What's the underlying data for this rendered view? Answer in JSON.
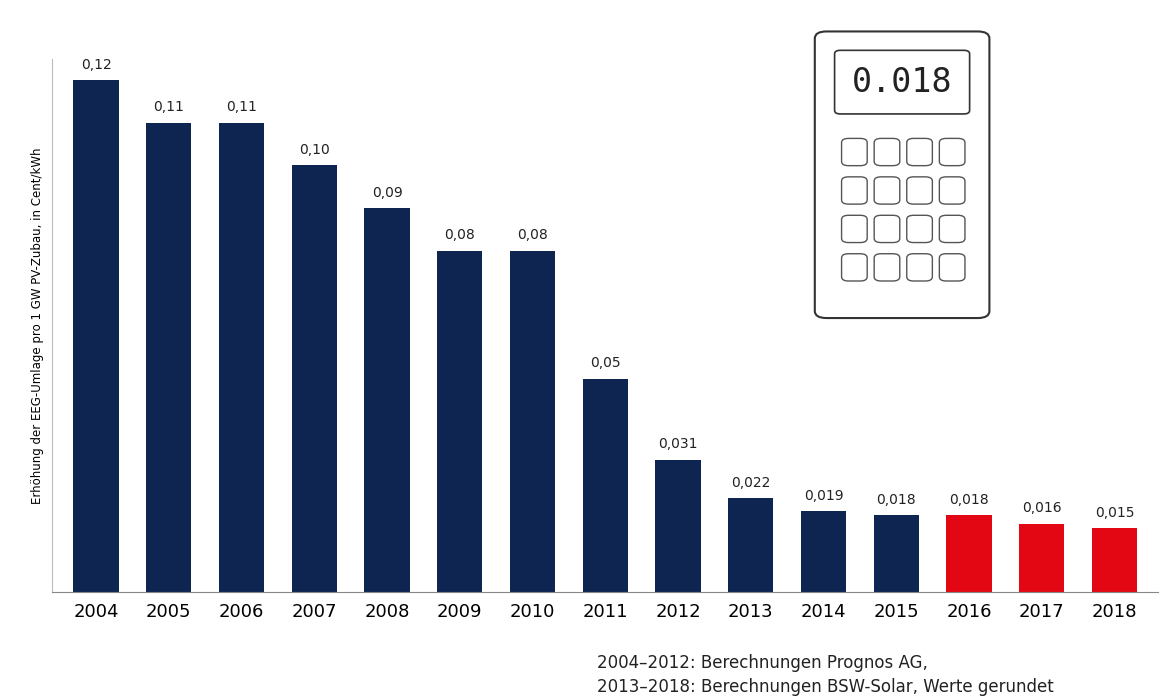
{
  "chart_data": {
    "type": "bar",
    "y_label": "Erhöhung der EEG-Umlage pro 1 GW PV-Zubau, in Cent/kWh",
    "categories": [
      "2004",
      "2005",
      "2006",
      "2007",
      "2008",
      "2009",
      "2010",
      "2011",
      "2012",
      "2013",
      "2014",
      "2015",
      "2016",
      "2017",
      "2018"
    ],
    "values": [
      0.12,
      0.11,
      0.11,
      0.1,
      0.09,
      0.08,
      0.08,
      0.05,
      0.031,
      0.022,
      0.019,
      0.018,
      0.018,
      0.016,
      0.015
    ],
    "value_labels": [
      "0,12",
      "0,11",
      "0,11",
      "0,10",
      "0,09",
      "0,08",
      "0,08",
      "0,05",
      "0,031",
      "0,022",
      "0,019",
      "0,018",
      "0,018",
      "0,016",
      "0,015"
    ],
    "colors": [
      "#0d2550",
      "#0d2550",
      "#0d2550",
      "#0d2550",
      "#0d2550",
      "#0d2550",
      "#0d2550",
      "#0d2550",
      "#0d2550",
      "#0d2550",
      "#0d2550",
      "#0d2550",
      "#e30613",
      "#e30613",
      "#e30613"
    ],
    "ylim": [
      0,
      0.125
    ],
    "data_labels": true,
    "tick_labels": "x",
    "grid": false,
    "annotations": [
      "0.018"
    ],
    "source": [
      "2004–2012: Berechnungen Prognos AG,",
      "2013–2018: Berechnungen BSW-Solar, Werte gerundet"
    ]
  }
}
